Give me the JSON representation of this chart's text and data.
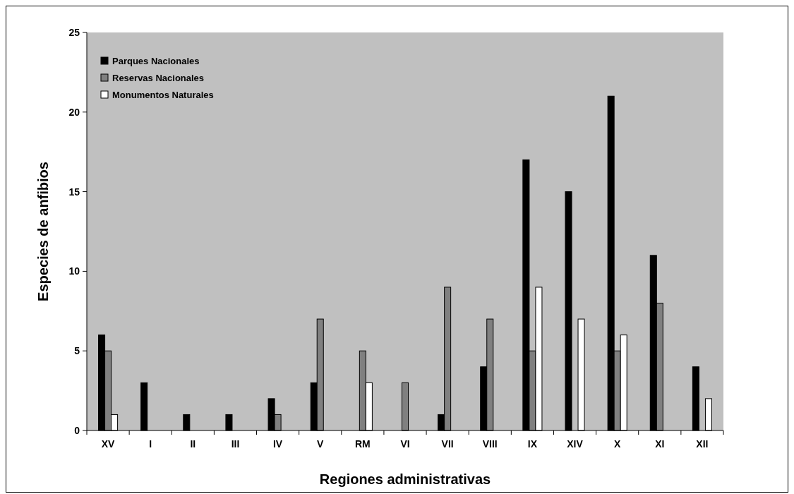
{
  "chart_data": {
    "type": "bar",
    "xlabel": "Regiones administrativas",
    "ylabel": "Especies de anfibios",
    "categories": [
      "XV",
      "I",
      "II",
      "III",
      "IV",
      "V",
      "RM",
      "VI",
      "VII",
      "VIII",
      "IX",
      "XIV",
      "X",
      "XI",
      "XII"
    ],
    "series": [
      {
        "name": "Parques Nacionales",
        "color": "#000000",
        "values": [
          6,
          3,
          1,
          1,
          2,
          3,
          0,
          0,
          1,
          4,
          17,
          15,
          21,
          11,
          4
        ]
      },
      {
        "name": "Reservas Nacionales",
        "color": "#808080",
        "values": [
          5,
          0,
          0,
          0,
          1,
          7,
          5,
          3,
          9,
          7,
          5,
          0,
          5,
          8,
          0
        ]
      },
      {
        "name": "Monumentos Naturales",
        "color": "#ffffff",
        "values": [
          1,
          0,
          0,
          0,
          0,
          0,
          3,
          0,
          0,
          0,
          9,
          7,
          6,
          0,
          2
        ]
      }
    ],
    "ylim": [
      0,
      25
    ],
    "yticks": [
      0,
      5,
      10,
      15,
      20,
      25
    ],
    "grid": false,
    "legend": "top left"
  }
}
